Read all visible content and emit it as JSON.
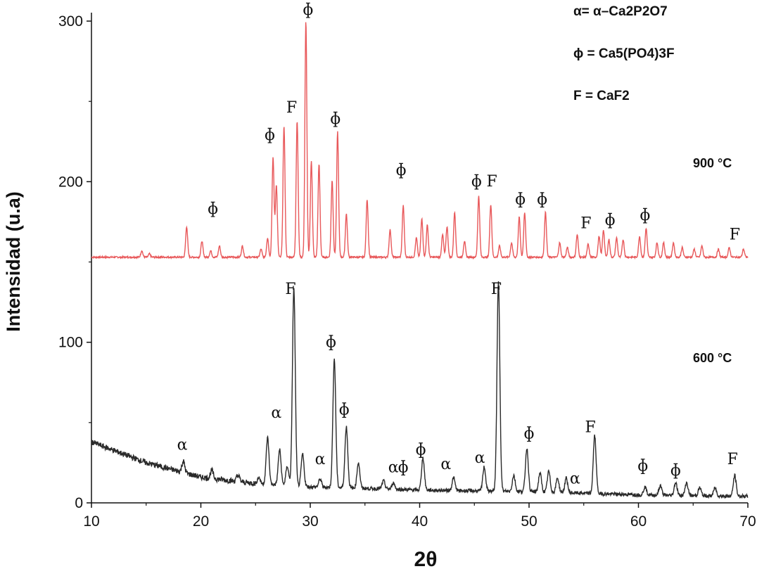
{
  "chart_data": {
    "type": "line",
    "title": "",
    "xlabel": "2θ",
    "ylabel": "Intensidad (u.a)",
    "xlim": [
      10,
      70
    ],
    "ylim": [
      0,
      300
    ],
    "x_ticks": [
      "10",
      "20",
      "30",
      "40",
      "50",
      "60",
      "70"
    ],
    "y_ticks": [
      "0",
      "100",
      "200",
      "300"
    ],
    "grid": false,
    "legend": {
      "placement": "top-right",
      "entries": [
        {
          "symbol": "α",
          "text_prefix": "α– Ca",
          "formula": "α= α–Ca2P2O7"
        },
        {
          "symbol": "ɸ",
          "formula": "ɸ = Ca5(PO4)3F"
        },
        {
          "symbol": "F",
          "formula": "F = CaF2"
        }
      ]
    },
    "series": [
      {
        "name": "900 °C",
        "color": "#e8585a",
        "baseline": 153,
        "peaks": [
          [
            14.6,
            4
          ],
          [
            15.3,
            2
          ],
          [
            18.7,
            19
          ],
          [
            20.1,
            10
          ],
          [
            20.9,
            4
          ],
          [
            21.7,
            7
          ],
          [
            23.8,
            7
          ],
          [
            25.5,
            5
          ],
          [
            26.1,
            12
          ],
          [
            26.6,
            62
          ],
          [
            26.9,
            45
          ],
          [
            27.6,
            82
          ],
          [
            28.8,
            85
          ],
          [
            29.6,
            147
          ],
          [
            30.1,
            60
          ],
          [
            30.8,
            58
          ],
          [
            32.0,
            48
          ],
          [
            32.5,
            78
          ],
          [
            33.3,
            27
          ],
          [
            35.2,
            36
          ],
          [
            37.3,
            17
          ],
          [
            38.5,
            32
          ],
          [
            39.7,
            12
          ],
          [
            40.2,
            24
          ],
          [
            40.7,
            20
          ],
          [
            42.1,
            14
          ],
          [
            42.5,
            19
          ],
          [
            43.2,
            28
          ],
          [
            44.1,
            10
          ],
          [
            45.4,
            38
          ],
          [
            46.5,
            33
          ],
          [
            47.3,
            7
          ],
          [
            48.4,
            9
          ],
          [
            49.1,
            25
          ],
          [
            49.6,
            28
          ],
          [
            51.5,
            28
          ],
          [
            52.8,
            9
          ],
          [
            53.5,
            6
          ],
          [
            54.4,
            14
          ],
          [
            55.4,
            8
          ],
          [
            56.4,
            13
          ],
          [
            56.8,
            17
          ],
          [
            57.3,
            11
          ],
          [
            58.0,
            12
          ],
          [
            58.6,
            11
          ],
          [
            60.1,
            13
          ],
          [
            60.7,
            18
          ],
          [
            61.7,
            9
          ],
          [
            62.3,
            9
          ],
          [
            63.2,
            9
          ],
          [
            64.0,
            6
          ],
          [
            65.1,
            5
          ],
          [
            65.8,
            7
          ],
          [
            67.3,
            5
          ],
          [
            68.3,
            6
          ],
          [
            69.6,
            5
          ]
        ]
      },
      {
        "name": "600 °C",
        "color": "#2a2a2a",
        "baseline_curve": [
          [
            10,
            38
          ],
          [
            15,
            25
          ],
          [
            20,
            16
          ],
          [
            25,
            12
          ],
          [
            30,
            10
          ],
          [
            40,
            8
          ],
          [
            50,
            7
          ],
          [
            60,
            5
          ],
          [
            70,
            4
          ]
        ],
        "peaks": [
          [
            18.4,
            7
          ],
          [
            21.0,
            5
          ],
          [
            23.4,
            4
          ],
          [
            25.3,
            4
          ],
          [
            26.1,
            29
          ],
          [
            27.2,
            22
          ],
          [
            27.9,
            12
          ],
          [
            28.5,
            123
          ],
          [
            29.3,
            20
          ],
          [
            30.9,
            5
          ],
          [
            32.2,
            80
          ],
          [
            33.3,
            38
          ],
          [
            34.4,
            16
          ],
          [
            36.7,
            5
          ],
          [
            37.6,
            4
          ],
          [
            40.3,
            20
          ],
          [
            43.1,
            8
          ],
          [
            45.9,
            15
          ],
          [
            47.2,
            130
          ],
          [
            48.6,
            10
          ],
          [
            49.8,
            27
          ],
          [
            51.0,
            12
          ],
          [
            51.8,
            13
          ],
          [
            52.6,
            9
          ],
          [
            53.4,
            9
          ],
          [
            56.0,
            36
          ],
          [
            60.6,
            5
          ],
          [
            62.0,
            6
          ],
          [
            63.4,
            8
          ],
          [
            64.4,
            8
          ],
          [
            65.6,
            5
          ],
          [
            67.0,
            5
          ],
          [
            68.8,
            13
          ]
        ]
      }
    ],
    "annotations": [
      {
        "text": "ɸ",
        "x": 21.1,
        "y": 180
      },
      {
        "text": "ɸ",
        "x": 26.3,
        "y": 226
      },
      {
        "text": "F",
        "x": 28.3,
        "y": 243
      },
      {
        "text": "ɸ",
        "x": 29.8,
        "y": 304
      },
      {
        "text": "ɸ",
        "x": 32.3,
        "y": 236
      },
      {
        "text": "ɸ",
        "x": 38.3,
        "y": 204
      },
      {
        "text": "ɸ",
        "x": 45.2,
        "y": 197
      },
      {
        "text": "F",
        "x": 46.6,
        "y": 197
      },
      {
        "text": "ɸ",
        "x": 49.2,
        "y": 186
      },
      {
        "text": "ɸ",
        "x": 51.2,
        "y": 186
      },
      {
        "text": "F",
        "x": 55.2,
        "y": 171
      },
      {
        "text": "ɸ",
        "x": 57.4,
        "y": 173
      },
      {
        "text": "ɸ",
        "x": 60.6,
        "y": 176
      },
      {
        "text": "F",
        "x": 68.8,
        "y": 164
      },
      {
        "text": "F",
        "x": 28.2,
        "y": 130
      },
      {
        "text": "F",
        "x": 47.0,
        "y": 130
      },
      {
        "text": "ɸ",
        "x": 31.9,
        "y": 97
      },
      {
        "text": "ɸ",
        "x": 33.1,
        "y": 55
      },
      {
        "text": "α",
        "x": 26.9,
        "y": 53
      },
      {
        "text": "α",
        "x": 18.3,
        "y": 33
      },
      {
        "text": "α",
        "x": 30.9,
        "y": 24
      },
      {
        "text": "α",
        "x": 37.6,
        "y": 19
      },
      {
        "text": "ɸ",
        "x": 38.5,
        "y": 19
      },
      {
        "text": "ɸ",
        "x": 40.1,
        "y": 30
      },
      {
        "text": "α",
        "x": 42.4,
        "y": 21
      },
      {
        "text": "α",
        "x": 45.5,
        "y": 25
      },
      {
        "text": "ɸ",
        "x": 50.0,
        "y": 40
      },
      {
        "text": "F",
        "x": 55.6,
        "y": 44
      },
      {
        "text": "α",
        "x": 54.2,
        "y": 12
      },
      {
        "text": "ɸ",
        "x": 60.4,
        "y": 20
      },
      {
        "text": "ɸ",
        "x": 63.4,
        "y": 17
      },
      {
        "text": "F",
        "x": 68.6,
        "y": 24
      }
    ]
  }
}
